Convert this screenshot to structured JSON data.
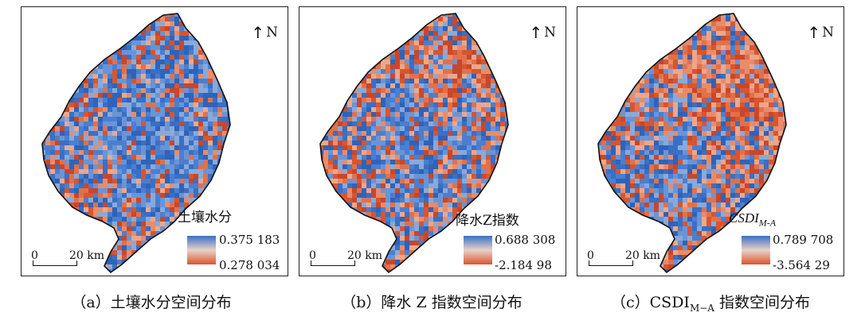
{
  "panels": [
    {
      "north_label": "N",
      "legend": {
        "title": "土壤水分",
        "max": "0.375 183",
        "min": "0.278 034",
        "dominant": "blue"
      },
      "scalebar": {
        "zero": "0",
        "distance": "20 km"
      },
      "caption": "（a）土壤水分空间分布"
    },
    {
      "north_label": "N",
      "legend": {
        "title": "降水Z指数",
        "max": "0.688 308",
        "min": "-2.184 98",
        "dominant": "mixed"
      },
      "scalebar": {
        "zero": "0",
        "distance": "20 km"
      },
      "caption": "（b）降水 Z 指数空间分布"
    },
    {
      "north_label": "N",
      "legend": {
        "title": "CSDI",
        "title_sub": "M-A",
        "max": "0.789 708",
        "min": "-3.564 29",
        "dominant": "red"
      },
      "scalebar": {
        "zero": "0",
        "distance": "20 km"
      },
      "caption_main": "（c）CSDI",
      "caption_sub": "M−A",
      "caption_tail": " 指数空间分布"
    }
  ],
  "colors": {
    "high": "#3a6fc4",
    "low": "#d8552f",
    "mid": "#e9b8a0",
    "outline": "#111111"
  }
}
